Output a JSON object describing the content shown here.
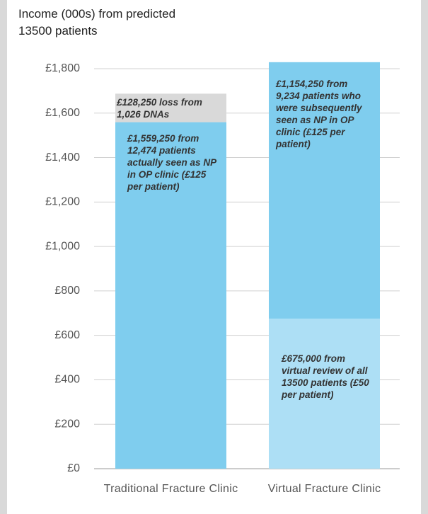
{
  "chart_data": {
    "type": "stacked_bar",
    "title": "Income (000s) from predicted 13500 patients",
    "categories": [
      "Traditional Fracture Clinic",
      "Virtual Fracture Clinic"
    ],
    "series": [
      {
        "colors": [
          "#7fcdee",
          "#addff5"
        ],
        "values": [
          1559.25,
          675
        ],
        "value_labels": [
          "£1,559,250 from 12,474 patients actually seen as NP in OP clinic (£125 per patient)",
          "£675,000 from virtual review of all 13500 patients (£50 per patient)"
        ]
      },
      {
        "colors": [
          "#d9d9d9",
          "#7fcdee"
        ],
        "values": [
          128.25,
          1154.25
        ],
        "value_labels": [
          "£128,250 loss from 1,026 DNAs",
          "£1,154,250 from 9,234 patients who were subsequently seen as NP in OP clinic (£125 per patient)"
        ]
      }
    ],
    "ylim": [
      0,
      1800
    ],
    "yticks": [
      {
        "value": 0,
        "label": "£0"
      },
      {
        "value": 200,
        "label": "£200"
      },
      {
        "value": 400,
        "label": "£400"
      },
      {
        "value": 600,
        "label": "£600"
      },
      {
        "value": 800,
        "label": "£800"
      },
      {
        "value": 1000,
        "label": "£1,000"
      },
      {
        "value": 1200,
        "label": "£1,200"
      },
      {
        "value": 1400,
        "label": "£1,400"
      },
      {
        "value": 1600,
        "label": "£1,600"
      },
      {
        "value": 1800,
        "label": "£1,800"
      }
    ],
    "grid": true
  }
}
